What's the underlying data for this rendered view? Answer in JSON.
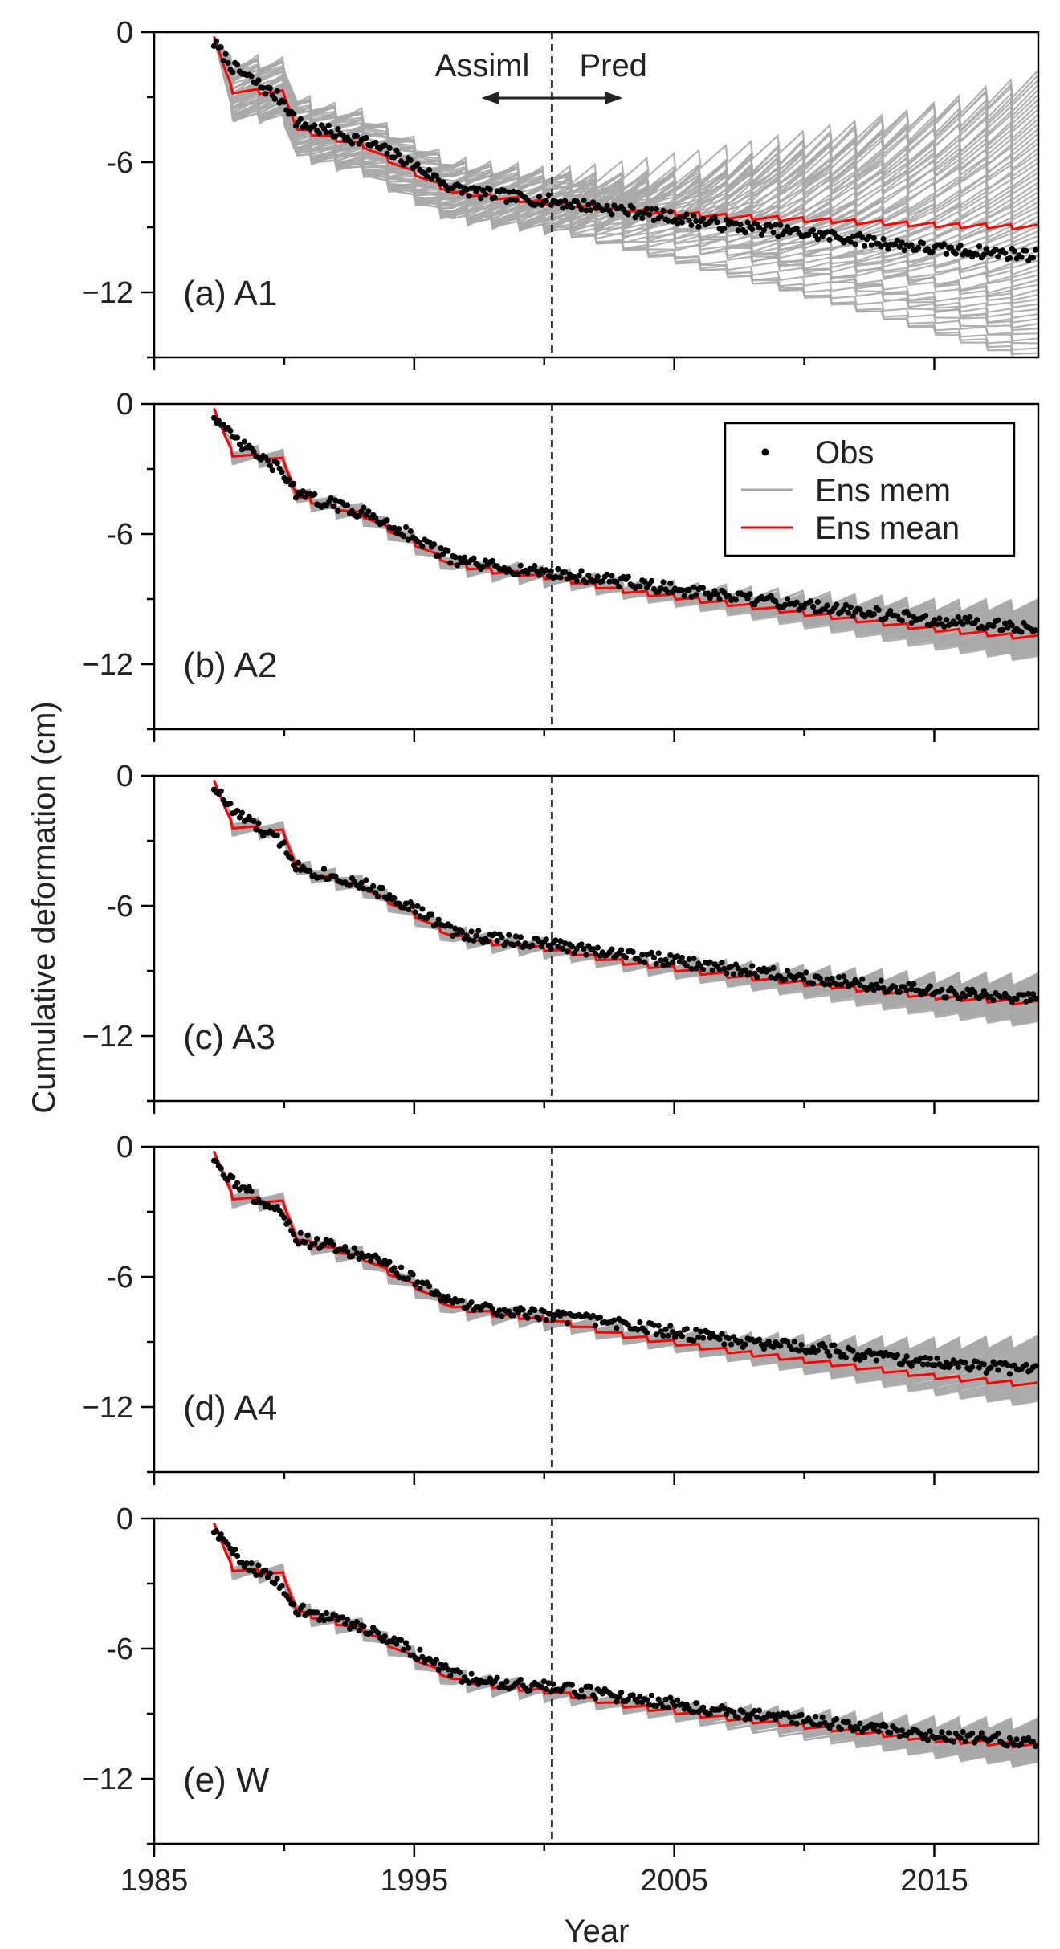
{
  "figure": {
    "ylabel": "Cumulative deformation (cm)",
    "xlabel": "Year",
    "annotation": {
      "left": "Assiml",
      "right": "Pred"
    },
    "legend": [
      {
        "label": "Obs",
        "kind": "dot",
        "color": "#000000"
      },
      {
        "label": "Ens mem",
        "kind": "line",
        "color": "#a9a9a9"
      },
      {
        "label": "Ens mean",
        "kind": "line",
        "color": "#ff0000"
      }
    ]
  },
  "chart_data": {
    "type": "line",
    "xlim": [
      1985,
      2019
    ],
    "ylim": [
      -15,
      0
    ],
    "x_ticks": [
      1985,
      1995,
      2005,
      2015
    ],
    "x_tick_labels": [
      "1985",
      "1995",
      "2005",
      "2015"
    ],
    "y_ticks": [
      0,
      -6,
      -12
    ],
    "y_tick_labels": [
      "0",
      "-6",
      "−12"
    ],
    "split_year": 2000.3,
    "legend_position": "upper-right of panel (b)",
    "panels": [
      {
        "label": "(a) A1",
        "ensemble_members": 60,
        "ensemble_spread_end": [
          -15.2,
          -2.2
        ],
        "series": [
          {
            "name": "Obs",
            "x": [
              1987.3,
              1988,
              1990,
              1990.5,
              1993,
              1994.5,
              1996.5,
              1998,
              2000.3,
              2003,
              2007,
              2011,
              2015,
              2019
            ],
            "values": [
              -0.5,
              -1.6,
              -3.2,
              -4.2,
              -5.0,
              -5.8,
              -7.2,
              -7.5,
              -7.8,
              -8.2,
              -8.9,
              -9.4,
              -10.0,
              -10.3
            ]
          },
          {
            "name": "Ens mean",
            "x": [
              1987.3,
              1988,
              1990,
              1990.5,
              1993,
              1994.5,
              1996.5,
              1998,
              2000.3,
              2003,
              2007,
              2011,
              2015,
              2019
            ],
            "values": [
              -0.2,
              -2.7,
              -2.8,
              -4.5,
              -5.2,
              -6.2,
              -7.4,
              -7.6,
              -7.9,
              -8.2,
              -8.5,
              -8.7,
              -8.9,
              -9.0
            ]
          }
        ]
      },
      {
        "label": "(b) A2",
        "ensemble_members": 60,
        "ensemble_spread_end": [
          -11.8,
          -9.3
        ],
        "series": [
          {
            "name": "Obs",
            "x": [
              1987.3,
              1988,
              1990,
              1990.5,
              1993,
              1994.5,
              1996.5,
              1998,
              2000.3,
              2003,
              2007,
              2011,
              2015,
              2019
            ],
            "values": [
              -0.5,
              -1.6,
              -3.2,
              -4.2,
              -5.0,
              -5.8,
              -7.2,
              -7.5,
              -7.8,
              -8.2,
              -8.9,
              -9.4,
              -10.0,
              -10.3
            ]
          },
          {
            "name": "Ens mean",
            "x": [
              1987.3,
              1988,
              1990,
              1990.5,
              1993,
              1994.5,
              1996.5,
              1998,
              2000.3,
              2003,
              2007,
              2011,
              2015,
              2019
            ],
            "values": [
              -0.2,
              -2.3,
              -2.6,
              -4.3,
              -5.1,
              -6.1,
              -7.4,
              -7.7,
              -8.0,
              -8.6,
              -9.2,
              -9.8,
              -10.4,
              -10.8
            ]
          }
        ]
      },
      {
        "label": "(c) A3",
        "ensemble_members": 60,
        "ensemble_spread_end": [
          -11.5,
          -9.4
        ],
        "series": [
          {
            "name": "Obs",
            "x": [
              1987.3,
              1988,
              1990,
              1990.5,
              1993,
              1994.5,
              1996.5,
              1998,
              2000.3,
              2003,
              2007,
              2011,
              2015,
              2019
            ],
            "values": [
              -0.5,
              -1.6,
              -3.2,
              -4.2,
              -5.0,
              -5.8,
              -7.2,
              -7.5,
              -7.8,
              -8.2,
              -8.9,
              -9.4,
              -10.0,
              -10.3
            ]
          },
          {
            "name": "Ens mean",
            "x": [
              1987.3,
              1988,
              1990,
              1990.5,
              1993,
              1994.5,
              1996.5,
              1998,
              2000.3,
              2003,
              2007,
              2011,
              2015,
              2019
            ],
            "values": [
              -0.2,
              -2.3,
              -2.6,
              -4.3,
              -5.1,
              -6.1,
              -7.4,
              -7.7,
              -8.0,
              -8.6,
              -9.2,
              -9.7,
              -10.2,
              -10.5
            ]
          }
        ]
      },
      {
        "label": "(d) A4",
        "ensemble_members": 60,
        "ensemble_spread_end": [
          -11.9,
          -9.0
        ],
        "series": [
          {
            "name": "Obs",
            "x": [
              1987.3,
              1988,
              1990,
              1990.5,
              1993,
              1994.5,
              1996.5,
              1998,
              2000.3,
              2003,
              2007,
              2011,
              2015,
              2019
            ],
            "values": [
              -0.5,
              -1.6,
              -3.2,
              -4.2,
              -5.0,
              -5.8,
              -7.2,
              -7.5,
              -7.8,
              -8.2,
              -8.9,
              -9.4,
              -10.0,
              -10.3
            ]
          },
          {
            "name": "Ens mean",
            "x": [
              1987.3,
              1988,
              1990,
              1990.5,
              1993,
              1994.5,
              1996.5,
              1998,
              2000.3,
              2003,
              2007,
              2011,
              2015,
              2019
            ],
            "values": [
              -0.2,
              -2.3,
              -2.6,
              -4.3,
              -5.1,
              -6.1,
              -7.4,
              -7.7,
              -8.0,
              -8.7,
              -9.4,
              -10.0,
              -10.6,
              -11.0
            ]
          }
        ]
      },
      {
        "label": "(e) W",
        "ensemble_members": 60,
        "ensemble_spread_end": [
          -11.4,
          -9.5
        ],
        "series": [
          {
            "name": "Obs",
            "x": [
              1987.3,
              1988,
              1990,
              1990.5,
              1993,
              1994.5,
              1996.5,
              1998,
              2000.3,
              2003,
              2007,
              2011,
              2015,
              2019
            ],
            "values": [
              -0.5,
              -1.6,
              -3.2,
              -4.2,
              -5.0,
              -5.8,
              -7.2,
              -7.5,
              -7.8,
              -8.2,
              -8.9,
              -9.4,
              -10.0,
              -10.3
            ]
          },
          {
            "name": "Ens mean",
            "x": [
              1987.3,
              1988,
              1990,
              1990.5,
              1993,
              1994.5,
              1996.5,
              1998,
              2000.3,
              2003,
              2007,
              2011,
              2015,
              2019
            ],
            "values": [
              -0.2,
              -2.3,
              -2.6,
              -4.3,
              -5.1,
              -6.1,
              -7.4,
              -7.7,
              -8.0,
              -8.6,
              -9.2,
              -9.7,
              -10.2,
              -10.5
            ]
          }
        ]
      }
    ]
  }
}
